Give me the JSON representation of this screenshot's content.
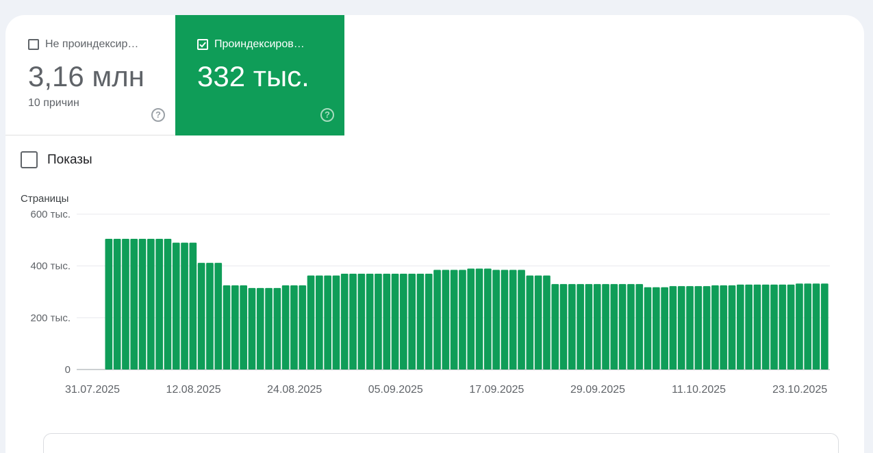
{
  "tabs": {
    "unindexed": {
      "label": "Не проиндексир…",
      "value": "3,16 млн",
      "sub": "10 причин",
      "checked": false
    },
    "indexed": {
      "label": "Проиндексиров…",
      "value": "332 тыс.",
      "checked": true
    }
  },
  "impressions": {
    "label": "Показы",
    "checked": false
  },
  "colors": {
    "bar": "#0f9d58",
    "grid": "#e8eaed",
    "axis": "#9aa0a6",
    "text": "#5f6368"
  },
  "chart_data": {
    "type": "bar",
    "ylabel": "Страницы",
    "ylim": [
      0,
      600000
    ],
    "y_ticks": [
      {
        "value": 0,
        "label": "0"
      },
      {
        "value": 200000,
        "label": "200 тыс."
      },
      {
        "value": 400000,
        "label": "400 тыс."
      },
      {
        "value": 600000,
        "label": "600 тыс."
      }
    ],
    "x_ticks": [
      "31.07.2025",
      "12.08.2025",
      "24.08.2025",
      "05.09.2025",
      "17.09.2025",
      "29.09.2025",
      "11.10.2025",
      "23.10.2025"
    ],
    "start_date": "31.07.2025",
    "bar_start_index": 5,
    "series": [
      {
        "values": [
          505000,
          505000,
          505000,
          505000,
          505000,
          505000,
          505000,
          505000,
          490000,
          490000,
          490000,
          412000,
          412000,
          412000,
          325000,
          325000,
          325000,
          315000,
          315000,
          315000,
          315000,
          325000,
          325000,
          325000,
          363000,
          363000,
          363000,
          363000,
          370000,
          370000,
          370000,
          370000,
          370000,
          370000,
          370000,
          370000,
          370000,
          370000,
          370000,
          385000,
          385000,
          385000,
          385000,
          390000,
          390000,
          390000,
          385000,
          385000,
          385000,
          385000,
          363000,
          363000,
          363000,
          330000,
          330000,
          330000,
          330000,
          330000,
          330000,
          330000,
          330000,
          330000,
          330000,
          330000,
          318000,
          318000,
          318000,
          322000,
          322000,
          322000,
          322000,
          322000,
          325000,
          325000,
          325000,
          328000,
          328000,
          328000,
          328000,
          328000,
          328000,
          328000,
          332000,
          332000,
          332000,
          332000
        ]
      }
    ]
  }
}
